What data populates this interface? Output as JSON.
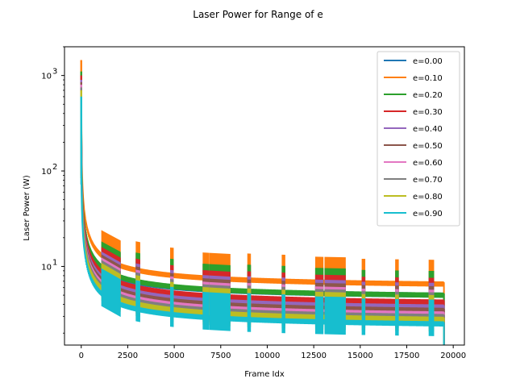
{
  "chart_data": {
    "type": "line",
    "title": "Laser Power for Range of e",
    "xlabel": "Frame Idx",
    "ylabel": "Laser Power (W)",
    "yscale": "log",
    "xlim": [
      -900,
      20600
    ],
    "ylim": [
      1.5,
      2000
    ],
    "xticks": [
      0,
      2500,
      5000,
      7500,
      10000,
      12500,
      15000,
      17500,
      20000
    ],
    "xtick_labels": [
      "0",
      "2500",
      "5000",
      "7500",
      "10000",
      "12500",
      "15000",
      "17500",
      "20000"
    ],
    "yticks": [
      10,
      100,
      1000
    ],
    "ytick_labels": [
      "10",
      "10",
      "10"
    ],
    "ytick_exponents": [
      "1",
      "2",
      "3"
    ],
    "grid": false,
    "legend": "upper right",
    "series": [
      {
        "name": "e=0.00",
        "color": "#1f77b4",
        "y_start": 1000,
        "y_end": 5.2
      },
      {
        "name": "e=0.10",
        "color": "#ff7f0e",
        "y_start": 1450,
        "y_end": 6.8
      },
      {
        "name": "e=0.20",
        "color": "#2ca02c",
        "y_start": 1100,
        "y_end": 5.2
      },
      {
        "name": "e=0.30",
        "color": "#d62728",
        "y_start": 1000,
        "y_end": 4.4
      },
      {
        "name": "e=0.40",
        "color": "#9467bd",
        "y_start": 900,
        "y_end": 3.9
      },
      {
        "name": "e=0.50",
        "color": "#8c564b",
        "y_start": 850,
        "y_end": 3.6
      },
      {
        "name": "e=0.60",
        "color": "#e377c2",
        "y_start": 800,
        "y_end": 3.3
      },
      {
        "name": "e=0.70",
        "color": "#7f7f7f",
        "y_start": 750,
        "y_end": 3.1
      },
      {
        "name": "e=0.80",
        "color": "#bcbd22",
        "y_start": 700,
        "y_end": 2.9
      },
      {
        "name": "e=0.90",
        "color": "#17becf",
        "y_start": 600,
        "y_end": 2.6
      }
    ],
    "spikes": [
      {
        "x0": 1100,
        "x1": 2100,
        "factor": 1.75
      },
      {
        "x0": 2950,
        "x1": 3150,
        "factor": 1.9
      },
      {
        "x0": 4800,
        "x1": 4950,
        "factor": 1.85
      },
      {
        "x0": 6550,
        "x1": 6850,
        "factor": 1.75
      },
      {
        "x0": 6900,
        "x1": 8000,
        "factor": 1.75
      },
      {
        "x0": 8950,
        "x1": 9100,
        "factor": 1.8
      },
      {
        "x0": 10800,
        "x1": 10950,
        "factor": 1.8
      },
      {
        "x0": 12600,
        "x1": 13000,
        "factor": 1.75
      },
      {
        "x0": 13100,
        "x1": 14200,
        "factor": 1.75
      },
      {
        "x0": 15100,
        "x1": 15250,
        "factor": 1.7
      },
      {
        "x0": 16900,
        "x1": 17050,
        "factor": 1.7
      },
      {
        "x0": 18700,
        "x1": 18950,
        "factor": 1.7
      }
    ],
    "x_end": 19500
  }
}
